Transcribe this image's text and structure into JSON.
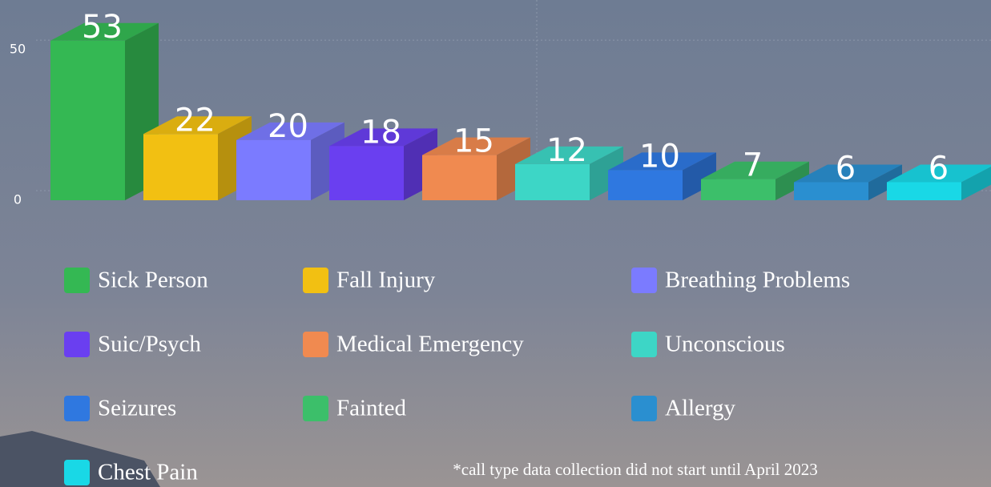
{
  "chart_data": {
    "type": "bar3d",
    "categories": [
      "Sick Person",
      "Fall Injury",
      "Breathing Problems",
      "Suic/Psych",
      "Medical Emergency",
      "Unconscious",
      "Seizures",
      "Fainted",
      "Allergy",
      "Chest Pain"
    ],
    "values": [
      53,
      22,
      20,
      18,
      15,
      12,
      10,
      7,
      6,
      6
    ],
    "colors": [
      "#34b853",
      "#f2c012",
      "#7b7bff",
      "#6a3ff0",
      "#f08a50",
      "#3dd6c6",
      "#2f78e0",
      "#3cbf6a",
      "#2a8fd0",
      "#19d8e6"
    ],
    "ylim": [
      0,
      58
    ],
    "yticks": [
      0,
      50
    ],
    "grid": true,
    "footnote": "*call type data collection did not start until April 2023"
  }
}
